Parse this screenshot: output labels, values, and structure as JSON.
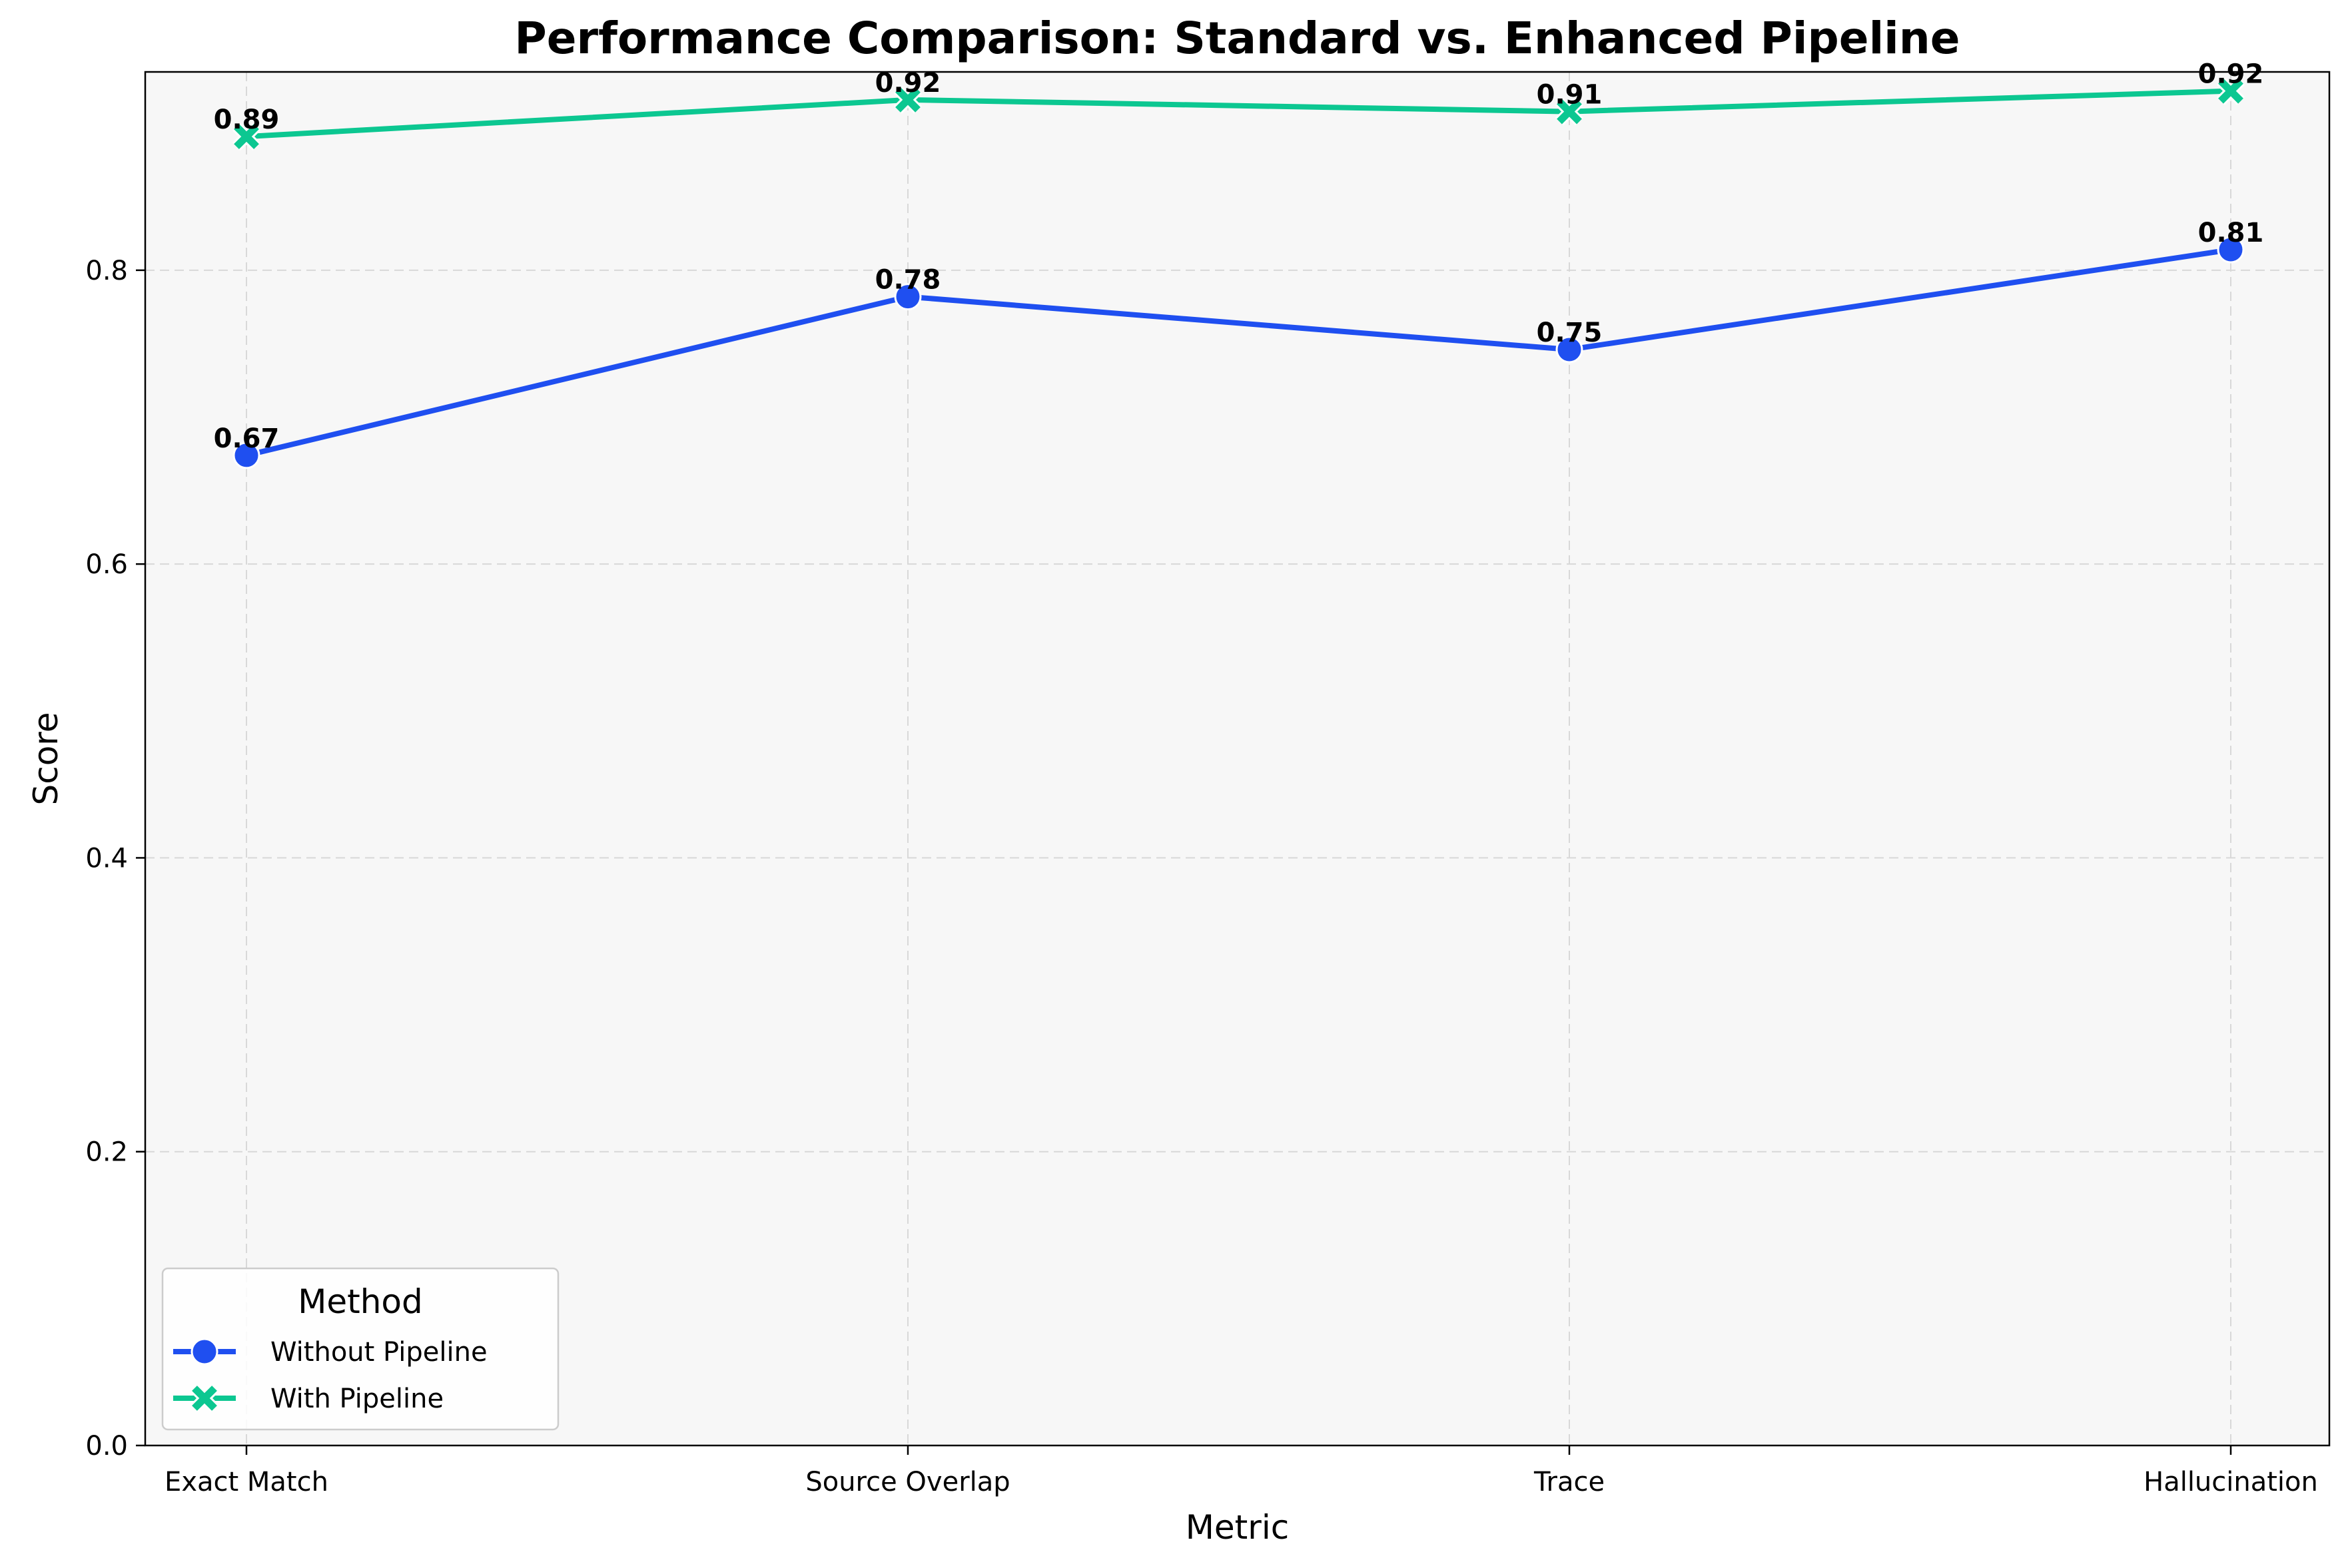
{
  "chart_data": {
    "type": "line",
    "title": "Performance Comparison: Standard vs. Enhanced Pipeline",
    "xlabel": "Metric",
    "ylabel": "Score",
    "categories": [
      "Exact Match",
      "Source Overlap",
      "Trace",
      "Hallucination"
    ],
    "ylim": [
      0,
      0.935
    ],
    "yticks": [
      0.0,
      0.2,
      0.4,
      0.6,
      0.8
    ],
    "ytick_labels": [
      "0.0",
      "0.2",
      "0.4",
      "0.6",
      "0.8"
    ],
    "grid": true,
    "legend": {
      "title": "Method",
      "placement": "lower-left"
    },
    "series": [
      {
        "name": "Without Pipeline",
        "values": [
          0.674,
          0.782,
          0.746,
          0.814
        ],
        "labels": [
          "0.67",
          "0.78",
          "0.75",
          "0.81"
        ],
        "color": "#1f4ff0",
        "marker": "circle-marker"
      },
      {
        "name": "With Pipeline",
        "values": [
          0.891,
          0.916,
          0.908,
          0.922
        ],
        "labels": [
          "0.89",
          "0.92",
          "0.91",
          "0.92"
        ],
        "color": "#0cc791",
        "marker": "x-marker"
      }
    ],
    "plot_background": "#f7f7f7"
  }
}
